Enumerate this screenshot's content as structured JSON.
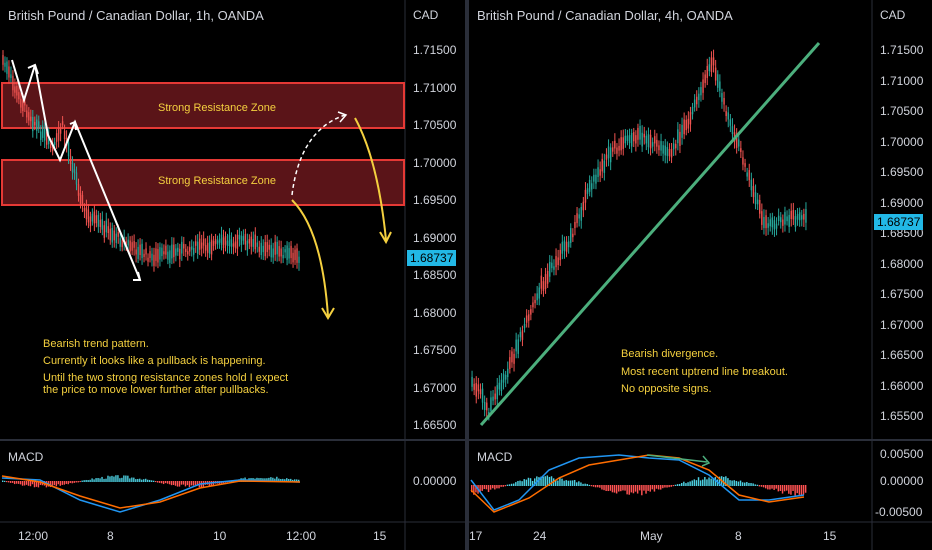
{
  "left": {
    "title": "British Pound / Canadian Dollar, 1h, OANDA",
    "currency": "CAD",
    "price_ticks": [
      "1.71500",
      "1.71000",
      "1.70500",
      "1.70000",
      "1.69500",
      "1.69000",
      "1.68500",
      "1.68000",
      "1.67500",
      "1.67000",
      "1.66500"
    ],
    "last_price": "1.68737",
    "macd_tick": "0.00000",
    "macd_label": "MACD",
    "time_ticks": [
      "12:00",
      "8",
      "10",
      "12:00",
      "15"
    ],
    "zone1_label": "Strong Resistance Zone",
    "zone2_label": "Strong Resistance Zone",
    "note1": "Bearish trend pattern.",
    "note2": "Currently it looks like a pullback is happening.",
    "note3": "Until the two strong resistance zones hold I expect",
    "note4": "the price to move lower further after pullbacks."
  },
  "right": {
    "title": "British Pound / Canadian Dollar, 4h, OANDA",
    "currency": "CAD",
    "price_ticks": [
      "1.71500",
      "1.71000",
      "1.70500",
      "1.70000",
      "1.69500",
      "1.69000",
      "1.68500",
      "1.68000",
      "1.67500",
      "1.67000",
      "1.66500",
      "1.66000",
      "1.65500"
    ],
    "last_price": "1.68737",
    "macd_ticks": [
      "0.00500",
      "0.00000",
      "-0.00500"
    ],
    "macd_label": "MACD",
    "time_ticks": [
      "17",
      "24",
      "May",
      "8",
      "15"
    ],
    "note1": "Bearish divergence.",
    "note2": "Most recent uptrend line breakout.",
    "note3": "No opposite signs."
  },
  "colors": {
    "up": "#26a69a",
    "down": "#ef5350",
    "zone": "#e53935",
    "annotation": "#f4d03f",
    "trendline": "#4caf7d",
    "badge": "#22b8e6"
  }
}
